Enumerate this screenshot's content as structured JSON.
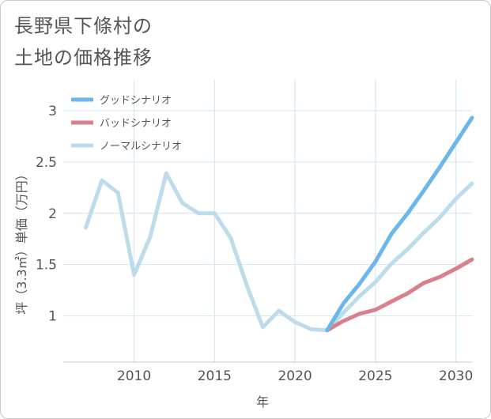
{
  "chart_data": {
    "type": "line",
    "title": [
      "長野県下條村の",
      "土地の価格推移"
    ],
    "xlabel": "年",
    "ylabel": "坪（3.3㎡）単価（万円）",
    "xlim": [
      2005.6,
      2031
    ],
    "ylim": [
      0.55,
      3.3
    ],
    "xticks": [
      2010,
      2015,
      2020,
      2025,
      2030
    ],
    "yticks": [
      1,
      1.5,
      2,
      2.5,
      3
    ],
    "ytick_labels": [
      "1",
      "1.5",
      "2",
      "2.5",
      "3"
    ],
    "grid": true,
    "legend_position": "top-left",
    "series": [
      {
        "name": "グッドシナリオ",
        "color": "#6bb6ea",
        "x": [
          2022,
          2023,
          2024,
          2025,
          2026,
          2027,
          2028,
          2029,
          2030,
          2031
        ],
        "values": [
          0.86,
          1.12,
          1.31,
          1.53,
          1.8,
          2.0,
          2.22,
          2.45,
          2.69,
          2.93
        ]
      },
      {
        "name": "バッドシナリオ",
        "color": "#d9808d",
        "x": [
          2022,
          2023,
          2024,
          2025,
          2026,
          2027,
          2028,
          2029,
          2030,
          2031
        ],
        "values": [
          0.86,
          0.95,
          1.02,
          1.06,
          1.14,
          1.22,
          1.32,
          1.38,
          1.46,
          1.55
        ]
      },
      {
        "name": "ノーマルシナリオ",
        "color": "#bcdcec",
        "x": [
          2007,
          2008,
          2009,
          2010,
          2011,
          2012,
          2013,
          2014,
          2015,
          2016,
          2017,
          2018,
          2019,
          2020,
          2021,
          2022,
          2023,
          2024,
          2025,
          2026,
          2027,
          2028,
          2029,
          2030,
          2031
        ],
        "values": [
          1.86,
          2.32,
          2.2,
          1.4,
          1.77,
          2.39,
          2.1,
          2.0,
          2.0,
          1.76,
          1.3,
          0.89,
          1.05,
          0.94,
          0.87,
          0.86,
          1.03,
          1.19,
          1.33,
          1.51,
          1.65,
          1.81,
          1.96,
          2.14,
          2.29
        ]
      }
    ]
  }
}
